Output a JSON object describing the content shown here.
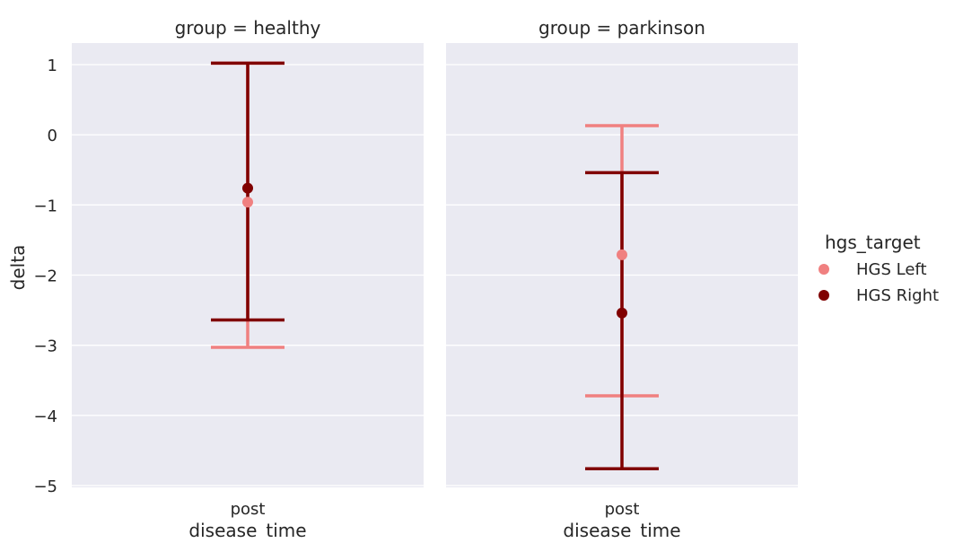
{
  "chart_data": {
    "type": "scatter",
    "subtype": "pointplot-with-error-bars",
    "ylabel": "delta",
    "xlabel": "disease_time",
    "ylim": [
      -5,
      1.3
    ],
    "yticks": [
      1,
      0,
      -1,
      -2,
      -3,
      -4,
      -5
    ],
    "ytick_labels": [
      "1",
      "0",
      "−1",
      "−2",
      "−3",
      "−4",
      "−5"
    ],
    "categories": [
      "post"
    ],
    "grid": true,
    "legend": {
      "title": "hgs_target",
      "placement": "right",
      "entries": [
        {
          "label": "HGS Left",
          "color": "#f08080"
        },
        {
          "label": "HGS Right",
          "color": "#800000"
        }
      ]
    },
    "panels": [
      {
        "title": "group = healthy",
        "series": [
          {
            "name": "HGS Left",
            "color": "#f08080",
            "point": -0.96,
            "ci": [
              -3.03,
              1.02
            ]
          },
          {
            "name": "HGS Right",
            "color": "#800000",
            "point": -0.76,
            "ci": [
              -2.64,
              1.02
            ]
          }
        ]
      },
      {
        "title": "group = parkinson",
        "series": [
          {
            "name": "HGS Left",
            "color": "#f08080",
            "point": -1.71,
            "ci": [
              -3.72,
              0.13
            ]
          },
          {
            "name": "HGS Right",
            "color": "#800000",
            "point": -2.54,
            "ci": [
              -4.76,
              -0.54
            ]
          }
        ]
      }
    ]
  },
  "colors": {
    "panel_bg": "#eaeaf2",
    "grid": "#ffffff",
    "text": "#262626"
  }
}
